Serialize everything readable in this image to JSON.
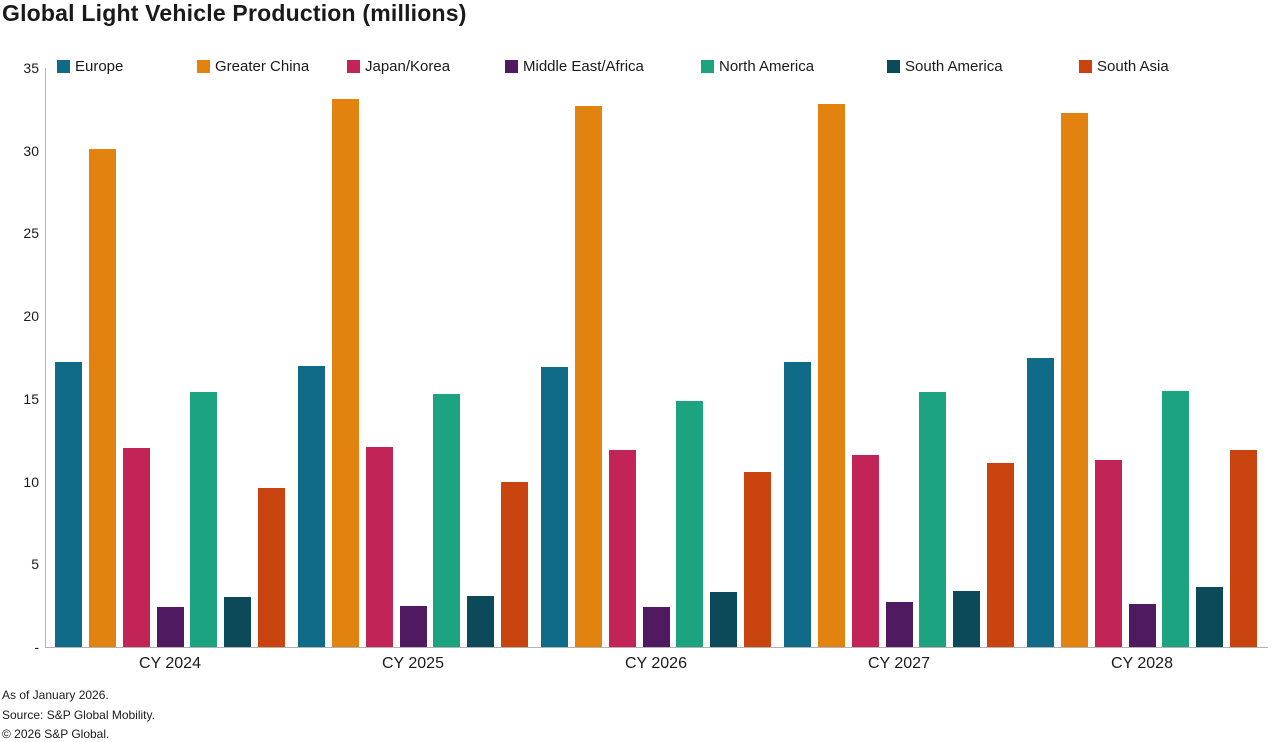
{
  "page": {
    "title": "Global Light Vehicle Production (millions)",
    "footnotes": [
      "As of January 2026.",
      "Source: S&P Global Mobility.",
      "© 2026 S&P Global."
    ]
  },
  "chart_data": {
    "type": "bar",
    "title": "Global Light Vehicle Production (millions)",
    "categories": [
      "CY 2024",
      "CY 2025",
      "CY 2026",
      "CY 2027",
      "CY 2028"
    ],
    "series": [
      {
        "name": "Europe",
        "color": "#0f6b88",
        "values": [
          17.2,
          17.0,
          16.9,
          17.2,
          17.5
        ]
      },
      {
        "name": "Greater China",
        "color": "#e2830f",
        "values": [
          30.1,
          33.1,
          32.7,
          32.8,
          32.3
        ]
      },
      {
        "name": "Japan/Korea",
        "color": "#c22458",
        "values": [
          12.0,
          12.1,
          11.9,
          11.6,
          11.3
        ]
      },
      {
        "name": "Middle East/Africa",
        "color": "#4f1a5f",
        "values": [
          2.4,
          2.5,
          2.4,
          2.7,
          2.6
        ]
      },
      {
        "name": "North America",
        "color": "#1ba47f",
        "values": [
          15.4,
          15.3,
          14.9,
          15.4,
          15.5
        ]
      },
      {
        "name": "South America",
        "color": "#0d4a59",
        "values": [
          3.0,
          3.1,
          3.3,
          3.4,
          3.6
        ]
      },
      {
        "name": "South Asia",
        "color": "#c9440f",
        "values": [
          9.6,
          10.0,
          10.6,
          11.1,
          11.9
        ]
      }
    ],
    "xlabel": "",
    "ylabel": "",
    "ylim": [
      0,
      35
    ],
    "ytick_interval": 5,
    "zero_tick_label": "-",
    "grid": false,
    "legend_position": "top",
    "axis_color": "#b3b3b3",
    "text_color": "#1a1a1a",
    "background_color": "#ffffff"
  }
}
